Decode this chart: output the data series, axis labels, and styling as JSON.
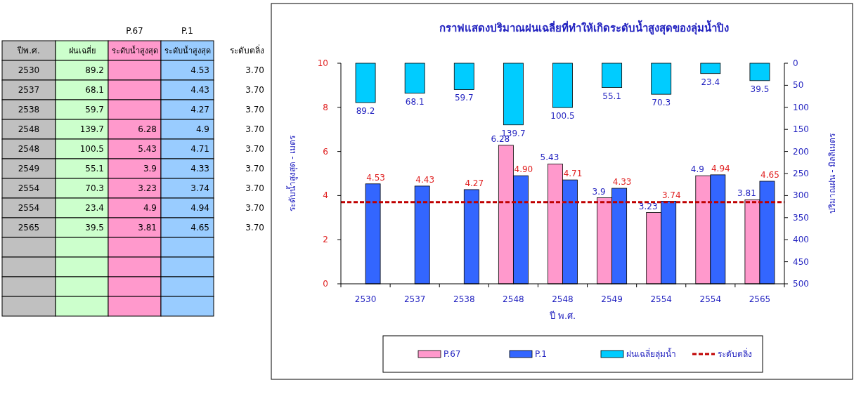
{
  "chart_data": {
    "type": "bar",
    "title": "กราฟแสดงปริมาณฝนเฉลี่ยที่ทำให้เกิดระดับน้ำสูงสุดของลุ่มน้ำปิง",
    "xlabel": "ปี พ.ศ.",
    "ylabel": "ระดับน้ำสูงสุด - เมตร",
    "y2label": "ปริมาณฝน - มิลลิเมตร",
    "categories": [
      "2530",
      "2537",
      "2538",
      "2548",
      "2548",
      "2549",
      "2554",
      "2554",
      "2565"
    ],
    "series": [
      {
        "name": "P.67",
        "color": "#ff99cc",
        "values": [
          null,
          null,
          null,
          6.28,
          5.43,
          3.9,
          3.23,
          4.9,
          3.81
        ],
        "value_labels": [
          null,
          null,
          null,
          "6.28",
          "5.43",
          "3.9",
          "3.23",
          "4.9",
          "3.81"
        ]
      },
      {
        "name": "P.1",
        "color": "#3366ff",
        "values": [
          4.53,
          4.43,
          4.27,
          4.9,
          4.71,
          4.33,
          3.74,
          4.94,
          4.65
        ],
        "value_labels": [
          "4.53",
          "4.43",
          "4.27",
          "4.90",
          "4.71",
          "4.33",
          "3.74",
          "4.94",
          "4.65"
        ]
      },
      {
        "name": "ฝนเฉลี่ยลุ่มน้ำ",
        "color": "#00ccff",
        "axis": "y2",
        "values": [
          89.2,
          68.1,
          59.7,
          139.7,
          100.5,
          55.1,
          70.3,
          23.4,
          39.5
        ],
        "value_labels": [
          "89.2",
          "68.1",
          "59.7",
          "139.7",
          "100.5",
          "55.1",
          "70.3",
          "23.4",
          "39.5"
        ]
      }
    ],
    "ylim": [
      0,
      10
    ],
    "yticks": [
      0,
      2,
      4,
      6,
      8,
      10
    ],
    "y2lim": [
      500,
      0
    ],
    "y2ticks": [
      0,
      50,
      100,
      150,
      200,
      250,
      300,
      350,
      400,
      450,
      500
    ],
    "ref_lines": [
      {
        "axis": "y",
        "value": 3.7,
        "label": "ระดับตลิ่ง",
        "color": "#c00000",
        "line_style": "dashed"
      }
    ],
    "annotations": [
      "ปีพ.ศ.",
      "ฝนเฉลี่ย",
      "ระดับน้ำสูงสุด",
      "ระดับน้ำสูงสุด",
      "89.2",
      "4.53",
      "3.70",
      "68.1",
      "4.43",
      "3.70",
      "59.7",
      "4.27",
      "3.70",
      "139.7",
      "6.28",
      "4.9",
      "3.70",
      "100.5",
      "5.43",
      "4.71",
      "3.70",
      "55.1",
      "3.9",
      "4.33",
      "3.70",
      "70.3",
      "3.23",
      "3.74",
      "3.70",
      "23.4",
      "4.9",
      "4.94",
      "3.70",
      "39.5",
      "3.81",
      "4.65",
      "3.70"
    ],
    "grid": false,
    "legend": "bottom"
  }
}
